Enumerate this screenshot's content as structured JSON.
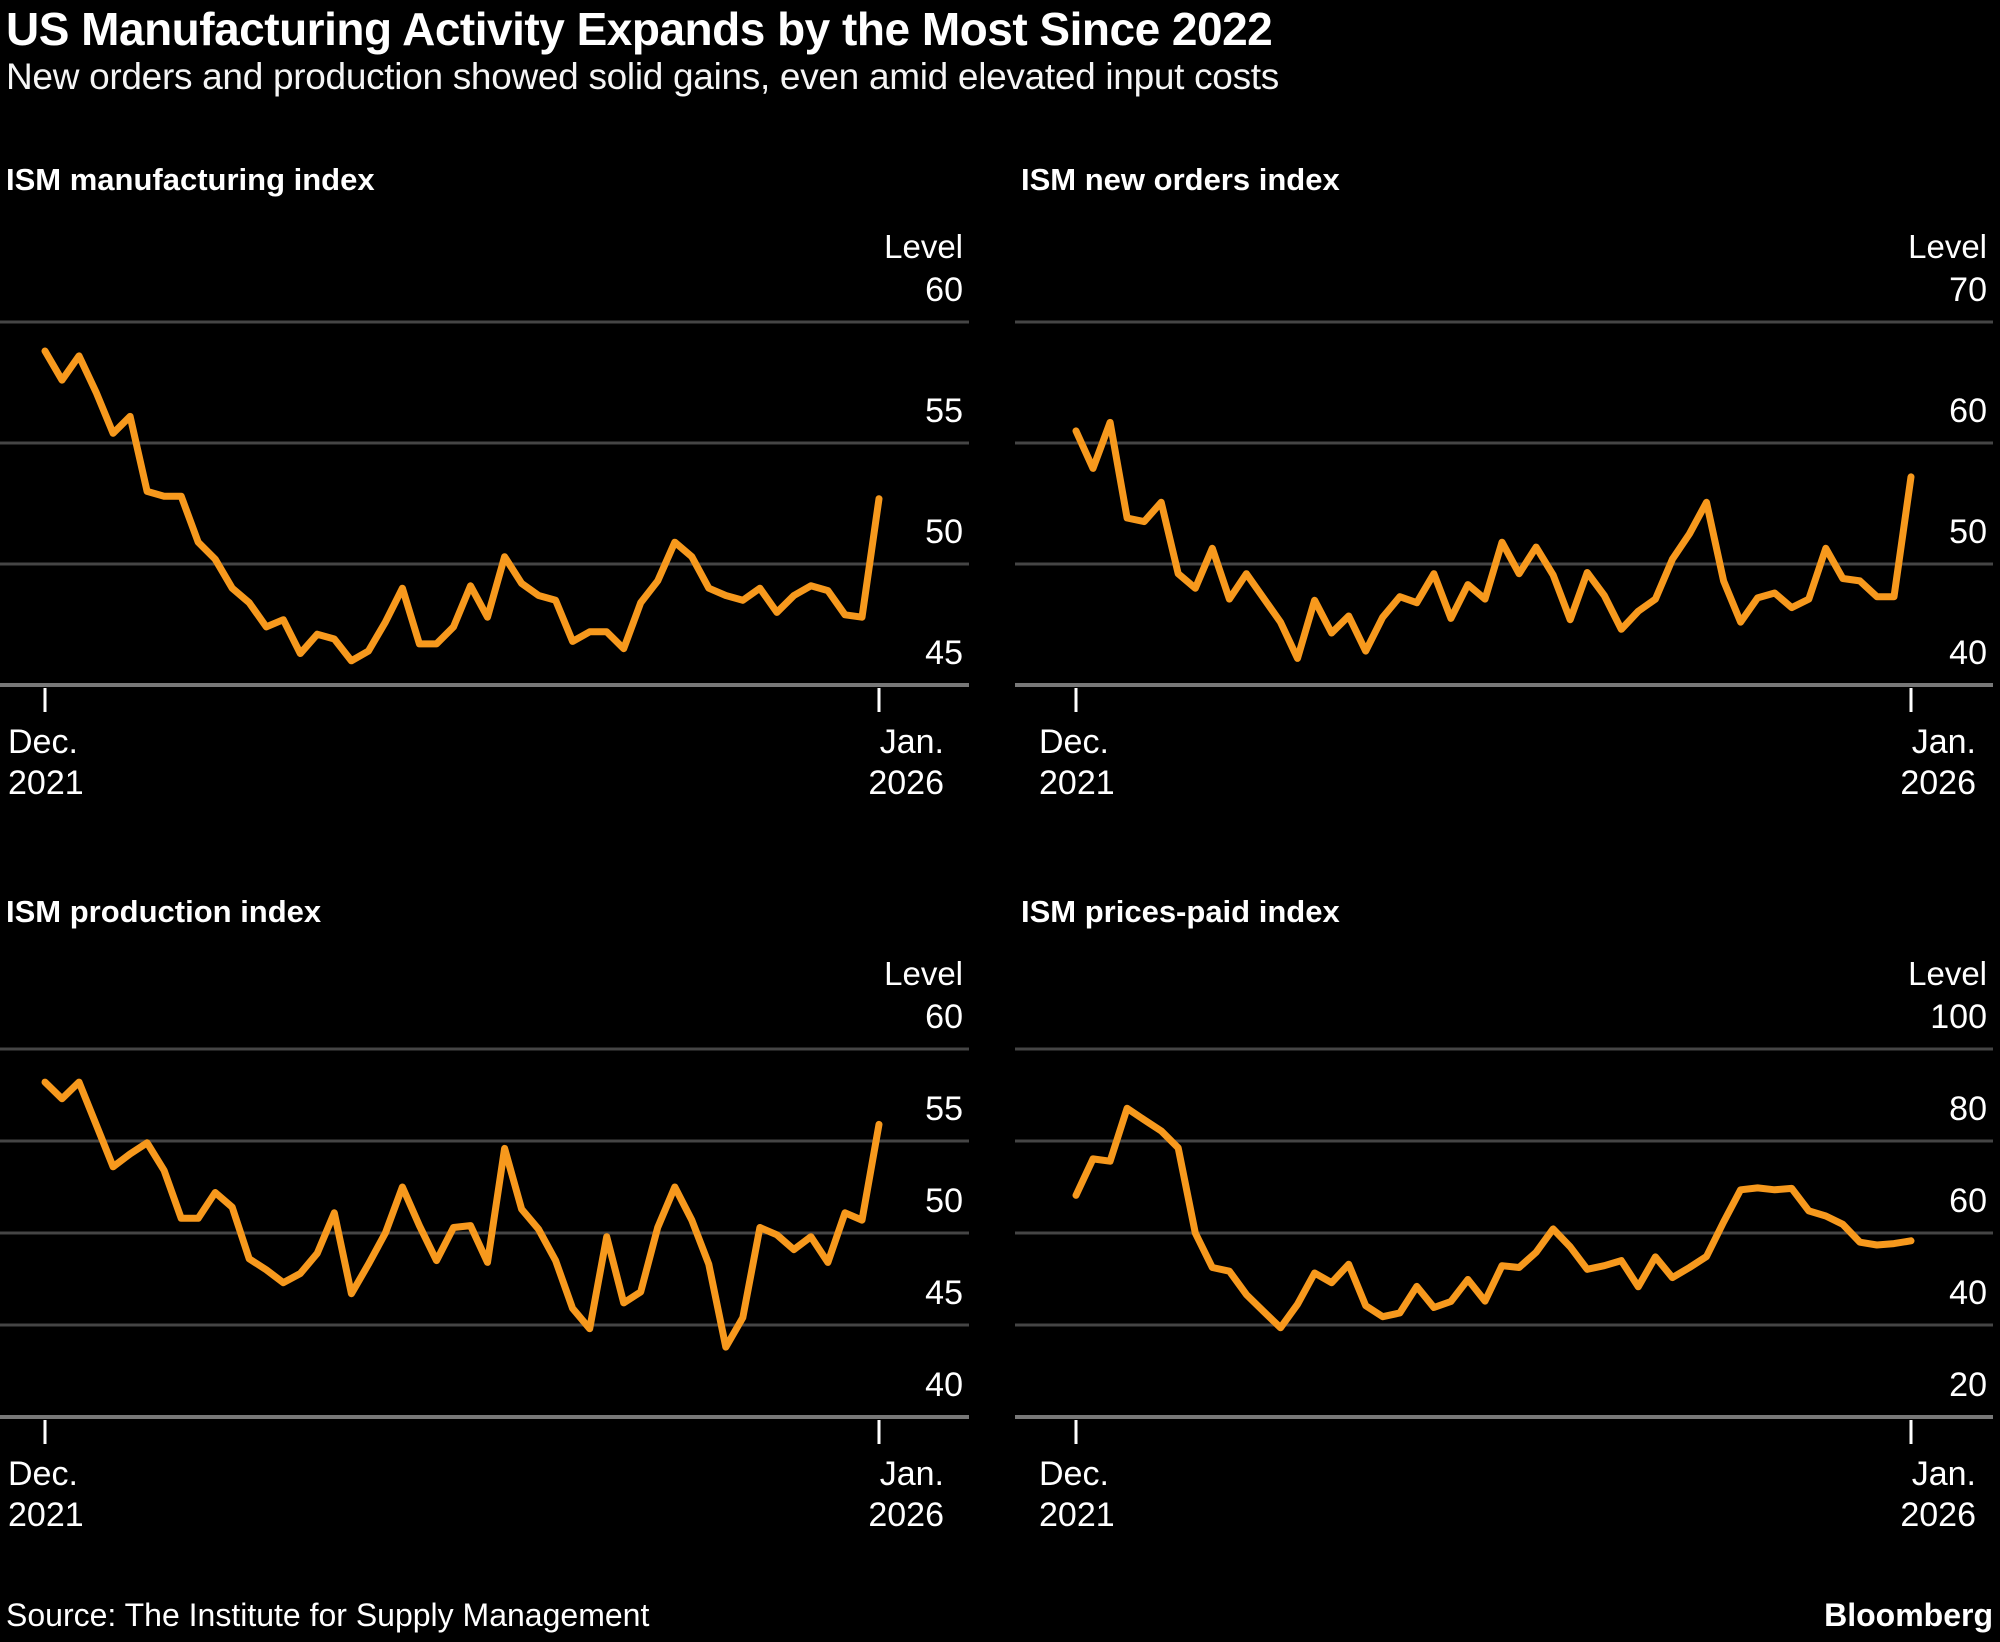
{
  "header": {
    "title": "US Manufacturing Activity Expands by the Most Since 2022",
    "subtitle": "New orders and production showed solid gains, even amid elevated input costs"
  },
  "footer": {
    "source": "Source: The Institute for Supply Management",
    "brand": "Bloomberg"
  },
  "colors": {
    "background": "#000000",
    "line": "#F7991D",
    "gridline": "#454545",
    "axis_line": "#787878",
    "tick": "#FFFFFF",
    "text": "#FFFFFF"
  },
  "chart_data": [
    {
      "type": "line",
      "title": "ISM manufacturing index",
      "unit_label": "Level",
      "legend_position": "none",
      "grid": "horizontal",
      "y_ticks": [
        60,
        55,
        50,
        45
      ],
      "x_start_label": [
        "Dec.",
        "2021"
      ],
      "x_end_label": [
        "Jan.",
        "2026"
      ],
      "x_range": [
        "Dec. 2021",
        "Jan. 2026"
      ],
      "x_unit": "month",
      "values": [
        58.8,
        57.6,
        58.6,
        57.1,
        55.4,
        56.1,
        53.0,
        52.8,
        52.8,
        50.9,
        50.2,
        49.0,
        48.4,
        47.4,
        47.7,
        46.3,
        47.1,
        46.9,
        46.0,
        46.4,
        47.6,
        49.0,
        46.7,
        46.7,
        47.4,
        49.1,
        47.8,
        50.3,
        49.2,
        48.7,
        48.5,
        46.8,
        47.2,
        47.2,
        46.5,
        48.4,
        49.3,
        50.9,
        50.3,
        49.0,
        48.7,
        48.5,
        49.0,
        48.0,
        48.7,
        49.1,
        48.9,
        47.9,
        47.8,
        52.7
      ]
    },
    {
      "type": "line",
      "title": "ISM new orders index",
      "unit_label": "Level",
      "legend_position": "none",
      "grid": "horizontal",
      "y_ticks": [
        70,
        60,
        50,
        40
      ],
      "x_start_label": [
        "Dec.",
        "2021"
      ],
      "x_end_label": [
        "Jan.",
        "2026"
      ],
      "x_range": [
        "Dec. 2021",
        "Jan. 2026"
      ],
      "x_unit": "month",
      "values": [
        61.0,
        57.9,
        61.7,
        53.8,
        53.5,
        55.1,
        49.2,
        48.0,
        51.3,
        47.1,
        49.2,
        47.2,
        45.2,
        42.2,
        47.0,
        44.3,
        45.7,
        42.8,
        45.6,
        47.3,
        46.8,
        49.2,
        45.5,
        48.3,
        47.1,
        51.8,
        49.2,
        51.4,
        49.1,
        45.4,
        49.3,
        47.4,
        44.6,
        46.1,
        47.1,
        50.4,
        52.5,
        55.1,
        48.6,
        45.2,
        47.2,
        47.6,
        46.4,
        47.1,
        51.3,
        48.8,
        48.6,
        47.3,
        47.3,
        57.2
      ]
    },
    {
      "type": "line",
      "title": "ISM production index",
      "unit_label": "Level",
      "legend_position": "none",
      "grid": "horizontal",
      "y_ticks": [
        60,
        55,
        50,
        45,
        40
      ],
      "x_start_label": [
        "Dec.",
        "2021"
      ],
      "x_end_label": [
        "Jan.",
        "2026"
      ],
      "x_range": [
        "Dec. 2021",
        "Jan. 2026"
      ],
      "x_unit": "month",
      "values": [
        58.2,
        57.3,
        58.2,
        55.9,
        53.6,
        54.3,
        54.9,
        53.4,
        50.8,
        50.8,
        52.2,
        51.4,
        48.6,
        48.0,
        47.3,
        47.8,
        48.9,
        51.1,
        46.7,
        48.3,
        50.0,
        52.5,
        50.4,
        48.5,
        50.3,
        50.4,
        48.4,
        54.6,
        51.3,
        50.2,
        48.5,
        45.9,
        44.8,
        49.8,
        46.2,
        46.8,
        50.3,
        52.5,
        50.7,
        48.3,
        43.8,
        45.4,
        50.3,
        49.9,
        49.1,
        49.8,
        48.4,
        51.1,
        50.7,
        55.9
      ]
    },
    {
      "type": "line",
      "title": "ISM prices-paid index",
      "unit_label": "Level",
      "legend_position": "none",
      "grid": "horizontal",
      "y_ticks": [
        100,
        80,
        60,
        40,
        20
      ],
      "x_start_label": [
        "Dec.",
        "2021"
      ],
      "x_end_label": [
        "Jan.",
        "2026"
      ],
      "x_range": [
        "Dec. 2021",
        "Jan. 2026"
      ],
      "x_unit": "month",
      "values": [
        68.2,
        76.1,
        75.6,
        87.1,
        84.6,
        82.2,
        78.5,
        60.0,
        52.5,
        51.7,
        46.6,
        43.0,
        39.4,
        44.5,
        51.3,
        49.2,
        53.2,
        44.2,
        41.8,
        42.6,
        48.4,
        43.8,
        45.1,
        49.9,
        45.2,
        52.9,
        52.5,
        55.8,
        60.9,
        57.0,
        52.1,
        52.9,
        54.0,
        48.3,
        54.8,
        50.3,
        52.5,
        54.9,
        62.4,
        69.4,
        69.8,
        69.4,
        69.7,
        64.8,
        63.7,
        61.9,
        58.0,
        57.4,
        57.7,
        58.3
      ]
    }
  ]
}
